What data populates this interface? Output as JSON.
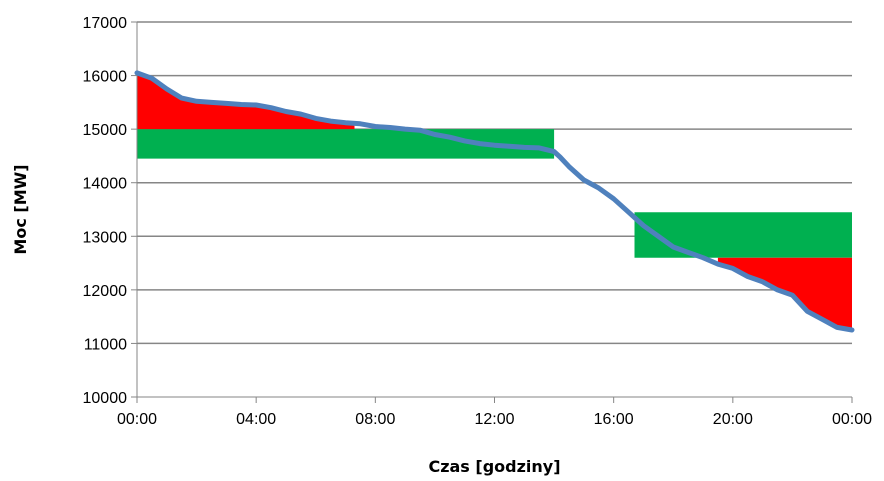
{
  "chart_data": {
    "type": "area",
    "title": "",
    "xlabel": "Czas [godziny]",
    "ylabel": "Moc [MW]",
    "x_unit": "hours",
    "x_ticks": [
      {
        "value": 0,
        "label": "00:00"
      },
      {
        "value": 4,
        "label": "04:00"
      },
      {
        "value": 8,
        "label": "08:00"
      },
      {
        "value": 12,
        "label": "12:00"
      },
      {
        "value": 16,
        "label": "16:00"
      },
      {
        "value": 20,
        "label": "20:00"
      },
      {
        "value": 24,
        "label": "00:00"
      }
    ],
    "xlim": [
      0,
      24
    ],
    "ylim": [
      10000,
      17000
    ],
    "y_ticks": [
      10000,
      11000,
      12000,
      13000,
      14000,
      15000,
      16000,
      17000
    ],
    "grid": "horizontal",
    "legend": "none",
    "colors": {
      "line": "#4f81bd",
      "surplus_fill": "#ff0000",
      "reserve_fill": "#00b050",
      "grid": "#868686"
    },
    "load_curve": {
      "x": [
        0,
        0.5,
        1,
        1.5,
        2,
        2.5,
        3,
        3.5,
        4,
        4.5,
        5,
        5.5,
        6,
        6.5,
        7,
        7.5,
        8,
        8.5,
        9,
        9.5,
        10,
        10.5,
        11,
        11.5,
        12,
        12.5,
        13,
        13.5,
        14,
        14.2,
        14.5,
        15,
        15.5,
        16,
        16.5,
        17,
        17.5,
        18,
        18.5,
        19,
        19.5,
        20,
        20.5,
        21,
        21.5,
        22,
        22.5,
        23,
        23.5,
        24
      ],
      "y": [
        16050,
        15950,
        15750,
        15580,
        15520,
        15500,
        15480,
        15460,
        15450,
        15400,
        15330,
        15280,
        15200,
        15150,
        15120,
        15100,
        15050,
        15030,
        15000,
        14980,
        14900,
        14850,
        14780,
        14730,
        14700,
        14680,
        14660,
        14650,
        14580,
        14480,
        14300,
        14050,
        13900,
        13700,
        13450,
        13200,
        13000,
        12800,
        12700,
        12600,
        12480,
        12400,
        12250,
        12150,
        12000,
        11900,
        11600,
        11450,
        11300,
        11250
      ]
    },
    "bands": [
      {
        "color": "#00b050",
        "x_start": 0,
        "x_end": 14.0,
        "y_low": 14450,
        "y_high": 15000
      },
      {
        "color": "#ff0000",
        "x_start": 0,
        "x_end": 7.3,
        "y_level": 15000,
        "fill": "above_level_below_curve"
      },
      {
        "color": "#00b050",
        "x_start": 16.7,
        "x_end": 24,
        "y_low": 12600,
        "y_high": 13450
      },
      {
        "color": "#ff0000",
        "x_start": 19.5,
        "x_end": 24,
        "y_level": 12600,
        "fill": "below_level_above_curve"
      }
    ]
  }
}
